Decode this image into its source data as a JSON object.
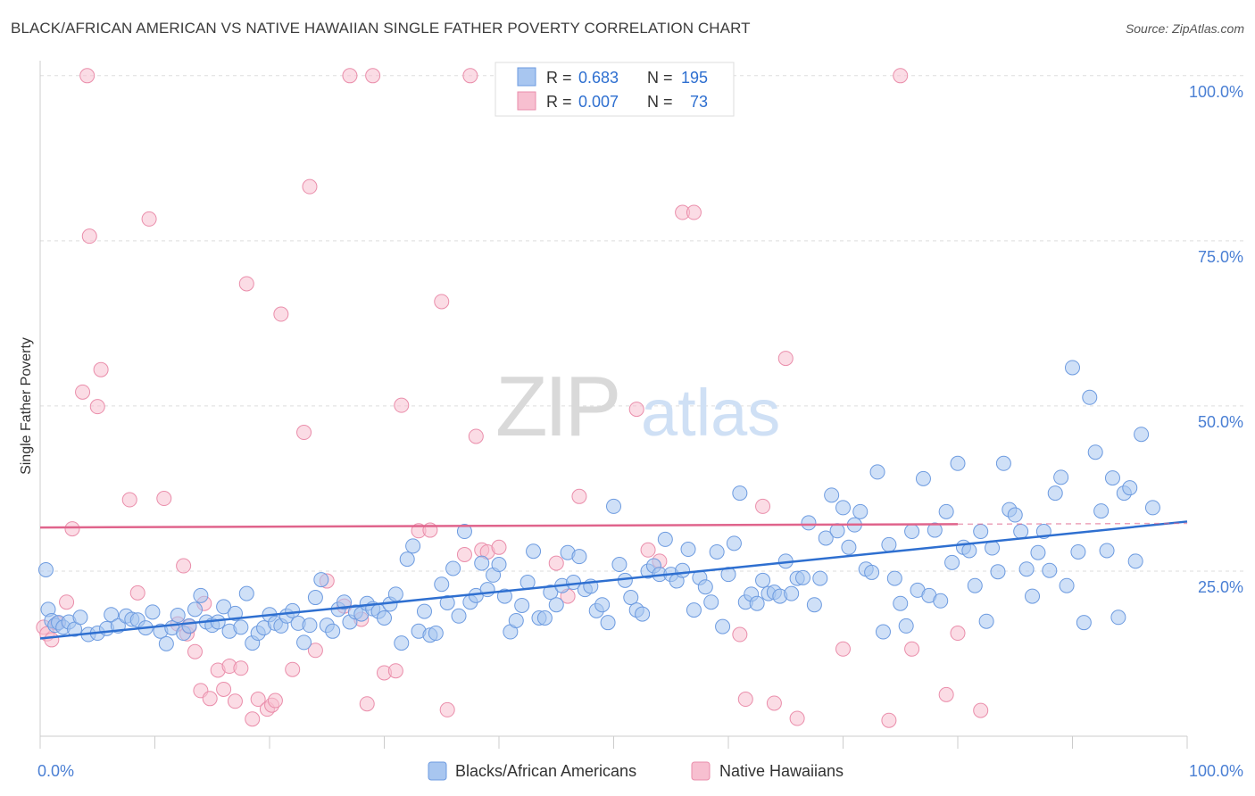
{
  "title": "BLACK/AFRICAN AMERICAN VS NATIVE HAWAIIAN SINGLE FATHER POVERTY CORRELATION CHART",
  "source": "Source: ZipAtlas.com",
  "watermark": {
    "zip": "ZIP",
    "atlas": "atlas"
  },
  "colors": {
    "blue_fill": "#a8c6f0",
    "blue_stroke": "#6d9be0",
    "blue_line": "#2e6fd0",
    "pink_fill": "#f7bfd0",
    "pink_stroke": "#ea8eab",
    "pink_line": "#e0648c",
    "axis_text": "#4a7fd4",
    "grid": "#dddddd"
  },
  "legend": {
    "rows": [
      {
        "r_label": "R =",
        "r_value": "0.683",
        "n_label": "N =",
        "n_value": "195"
      },
      {
        "r_label": "R =",
        "r_value": "0.007",
        "n_label": "N =",
        "n_value": "73"
      }
    ]
  },
  "chart_data": {
    "type": "scatter",
    "title": "BLACK/AFRICAN AMERICAN VS NATIVE HAWAIIAN SINGLE FATHER POVERTY CORRELATION CHART",
    "xlabel": "",
    "ylabel": "Single Father Poverty",
    "xlim": [
      0,
      100
    ],
    "ylim": [
      0,
      102
    ],
    "x_tick_labels": [
      "0.0%",
      "100.0%"
    ],
    "y_ticks": [
      25,
      50,
      75,
      100
    ],
    "y_tick_labels": [
      "25.0%",
      "50.0%",
      "75.0%",
      "100.0%"
    ],
    "grid": true,
    "legend_position": "bottom",
    "series": [
      {
        "name": "Blacks/African Americans",
        "trend": {
          "x": [
            0,
            100
          ],
          "y": [
            14.8,
            32.5
          ]
        },
        "points": [
          [
            0.5,
            25.2
          ],
          [
            0.7,
            19.2
          ],
          [
            1,
            17.5
          ],
          [
            1.3,
            16.8
          ],
          [
            1.6,
            17.2
          ],
          [
            2,
            16.5
          ],
          [
            2.5,
            17.3
          ],
          [
            3,
            16.2
          ],
          [
            3.5,
            18.0
          ],
          [
            4.2,
            15.4
          ],
          [
            5,
            15.6
          ],
          [
            5.8,
            16.3
          ],
          [
            6.2,
            18.4
          ],
          [
            6.8,
            16.7
          ],
          [
            7.5,
            18.2
          ],
          [
            8,
            17.7
          ],
          [
            8.5,
            17.6
          ],
          [
            9.2,
            16.4
          ],
          [
            9.8,
            18.8
          ],
          [
            10.5,
            15.9
          ],
          [
            11,
            14.0
          ],
          [
            11.5,
            16.4
          ],
          [
            12,
            18.3
          ],
          [
            12.5,
            15.6
          ],
          [
            13,
            16.7
          ],
          [
            13.5,
            19.2
          ],
          [
            14,
            21.3
          ],
          [
            14.5,
            17.3
          ],
          [
            15,
            16.8
          ],
          [
            15.5,
            17.3
          ],
          [
            16,
            19.6
          ],
          [
            16.5,
            15.9
          ],
          [
            17,
            18.6
          ],
          [
            17.5,
            16.5
          ],
          [
            18,
            21.6
          ],
          [
            18.5,
            14.1
          ],
          [
            19,
            15.6
          ],
          [
            19.5,
            16.4
          ],
          [
            20,
            18.4
          ],
          [
            20.5,
            17.1
          ],
          [
            21,
            16.7
          ],
          [
            21.5,
            18.2
          ],
          [
            22,
            19.0
          ],
          [
            22.5,
            17.1
          ],
          [
            23,
            14.2
          ],
          [
            23.5,
            16.8
          ],
          [
            24,
            21.0
          ],
          [
            24.5,
            23.7
          ],
          [
            25,
            16.8
          ],
          [
            25.5,
            15.9
          ],
          [
            26,
            19.2
          ],
          [
            26.5,
            20.3
          ],
          [
            27,
            17.3
          ],
          [
            27.5,
            18.8
          ],
          [
            28,
            18.5
          ],
          [
            28.5,
            20.1
          ],
          [
            29,
            19.3
          ],
          [
            29.5,
            18.9
          ],
          [
            30,
            17.9
          ],
          [
            30.5,
            20.0
          ],
          [
            31,
            21.5
          ],
          [
            31.5,
            14.1
          ],
          [
            32,
            26.8
          ],
          [
            32.5,
            28.8
          ],
          [
            33,
            15.9
          ],
          [
            33.5,
            18.9
          ],
          [
            34,
            15.3
          ],
          [
            34.5,
            15.6
          ],
          [
            35,
            23.0
          ],
          [
            35.5,
            20.2
          ],
          [
            36,
            25.4
          ],
          [
            36.5,
            18.2
          ],
          [
            37,
            31.0
          ],
          [
            37.5,
            20.3
          ],
          [
            38,
            21.3
          ],
          [
            38.5,
            26.2
          ],
          [
            39,
            22.2
          ],
          [
            39.5,
            24.4
          ],
          [
            40,
            26.0
          ],
          [
            40.5,
            21.2
          ],
          [
            41,
            15.8
          ],
          [
            41.5,
            17.5
          ],
          [
            42,
            19.8
          ],
          [
            42.5,
            23.3
          ],
          [
            43,
            28.0
          ],
          [
            43.5,
            17.9
          ],
          [
            44,
            17.9
          ],
          [
            44.5,
            21.8
          ],
          [
            45,
            19.9
          ],
          [
            45.5,
            22.8
          ],
          [
            46,
            27.8
          ],
          [
            46.5,
            23.3
          ],
          [
            47,
            27.2
          ],
          [
            47.5,
            22.2
          ],
          [
            48,
            22.7
          ],
          [
            48.5,
            19.0
          ],
          [
            49,
            19.9
          ],
          [
            49.5,
            17.2
          ],
          [
            50,
            34.8
          ],
          [
            50.5,
            26.0
          ],
          [
            51,
            23.6
          ],
          [
            51.5,
            21.0
          ],
          [
            52,
            19.1
          ],
          [
            52.5,
            18.5
          ],
          [
            53,
            25.0
          ],
          [
            53.5,
            25.8
          ],
          [
            54,
            24.5
          ],
          [
            54.5,
            29.8
          ],
          [
            55,
            24.5
          ],
          [
            55.5,
            23.5
          ],
          [
            56,
            25.1
          ],
          [
            56.5,
            28.3
          ],
          [
            57,
            19.1
          ],
          [
            57.5,
            24.0
          ],
          [
            58,
            22.6
          ],
          [
            58.5,
            20.3
          ],
          [
            59,
            27.9
          ],
          [
            59.5,
            16.6
          ],
          [
            60,
            24.5
          ],
          [
            60.5,
            29.2
          ],
          [
            61,
            36.8
          ],
          [
            61.5,
            20.3
          ],
          [
            62,
            21.5
          ],
          [
            62.5,
            20.1
          ],
          [
            63,
            23.6
          ],
          [
            63.5,
            21.6
          ],
          [
            64,
            21.8
          ],
          [
            64.5,
            21.2
          ],
          [
            65,
            26.5
          ],
          [
            65.5,
            21.6
          ],
          [
            66,
            23.9
          ],
          [
            66.5,
            24.0
          ],
          [
            67,
            32.3
          ],
          [
            67.5,
            19.9
          ],
          [
            68,
            23.9
          ],
          [
            68.5,
            30.0
          ],
          [
            69,
            36.5
          ],
          [
            69.5,
            31.1
          ],
          [
            70,
            34.6
          ],
          [
            70.5,
            28.6
          ],
          [
            71,
            32.0
          ],
          [
            71.5,
            34.0
          ],
          [
            72,
            25.3
          ],
          [
            72.5,
            24.8
          ],
          [
            73,
            40.0
          ],
          [
            73.5,
            15.8
          ],
          [
            74,
            29.0
          ],
          [
            74.5,
            23.9
          ],
          [
            75,
            20.1
          ],
          [
            75.5,
            16.7
          ],
          [
            76,
            31.0
          ],
          [
            76.5,
            22.1
          ],
          [
            77,
            39.0
          ],
          [
            77.5,
            21.3
          ],
          [
            78,
            31.2
          ],
          [
            78.5,
            20.5
          ],
          [
            79,
            34.0
          ],
          [
            79.5,
            26.3
          ],
          [
            80,
            41.3
          ],
          [
            80.5,
            28.6
          ],
          [
            81,
            28.1
          ],
          [
            81.5,
            22.8
          ],
          [
            82,
            31.0
          ],
          [
            82.5,
            17.4
          ],
          [
            83,
            28.5
          ],
          [
            83.5,
            24.9
          ],
          [
            84,
            41.3
          ],
          [
            84.5,
            34.3
          ],
          [
            85,
            33.5
          ],
          [
            85.5,
            31.0
          ],
          [
            86,
            25.3
          ],
          [
            86.5,
            21.2
          ],
          [
            87,
            27.8
          ],
          [
            87.5,
            31.0
          ],
          [
            88,
            25.1
          ],
          [
            88.5,
            36.8
          ],
          [
            89,
            39.2
          ],
          [
            89.5,
            22.8
          ],
          [
            90,
            55.8
          ],
          [
            90.5,
            27.9
          ],
          [
            91,
            17.2
          ],
          [
            91.5,
            51.3
          ],
          [
            92,
            43.0
          ],
          [
            92.5,
            34.1
          ],
          [
            93,
            28.1
          ],
          [
            93.5,
            39.1
          ],
          [
            94,
            18.0
          ],
          [
            94.5,
            36.8
          ],
          [
            95,
            37.6
          ],
          [
            95.5,
            26.5
          ],
          [
            96,
            45.7
          ],
          [
            97,
            34.6
          ]
        ]
      },
      {
        "name": "Native Hawaiians",
        "trend": {
          "x": [
            0,
            80
          ],
          "y": [
            31.6,
            32.1
          ]
        },
        "trend_dashed_to": 100,
        "points": [
          [
            0.3,
            16.5
          ],
          [
            0.6,
            15.5
          ],
          [
            1,
            14.6
          ],
          [
            1.5,
            17.1
          ],
          [
            2.3,
            20.3
          ],
          [
            2.8,
            31.4
          ],
          [
            3.7,
            52.1
          ],
          [
            4.1,
            100
          ],
          [
            4.3,
            75.7
          ],
          [
            5,
            49.9
          ],
          [
            5.3,
            55.5
          ],
          [
            7.8,
            35.8
          ],
          [
            8.5,
            21.7
          ],
          [
            9.5,
            78.3
          ],
          [
            10.8,
            36.0
          ],
          [
            12,
            17.0
          ],
          [
            12.5,
            25.8
          ],
          [
            12.8,
            15.5
          ],
          [
            13,
            16.6
          ],
          [
            13.5,
            12.8
          ],
          [
            14,
            6.9
          ],
          [
            14.3,
            20.1
          ],
          [
            14.8,
            5.7
          ],
          [
            15.5,
            10.0
          ],
          [
            16,
            7.1
          ],
          [
            16.5,
            10.6
          ],
          [
            17,
            5.3
          ],
          [
            17.5,
            10.3
          ],
          [
            18,
            68.5
          ],
          [
            18.5,
            2.6
          ],
          [
            19,
            5.6
          ],
          [
            19.8,
            4.1
          ],
          [
            20.2,
            4.7
          ],
          [
            20.5,
            5.4
          ],
          [
            21,
            63.9
          ],
          [
            22,
            10.1
          ],
          [
            23,
            46.0
          ],
          [
            23.5,
            83.2
          ],
          [
            24,
            13.0
          ],
          [
            25,
            23.5
          ],
          [
            26.5,
            19.7
          ],
          [
            27,
            100
          ],
          [
            28,
            17.7
          ],
          [
            28.5,
            4.9
          ],
          [
            29,
            100
          ],
          [
            30,
            9.6
          ],
          [
            31,
            9.9
          ],
          [
            31.5,
            50.1
          ],
          [
            33,
            31.1
          ],
          [
            34,
            31.2
          ],
          [
            35,
            65.8
          ],
          [
            35.5,
            4.0
          ],
          [
            37,
            27.5
          ],
          [
            37.5,
            100
          ],
          [
            38,
            45.4
          ],
          [
            38.5,
            28.2
          ],
          [
            39,
            27.9
          ],
          [
            40,
            28.6
          ],
          [
            45,
            26.2
          ],
          [
            46,
            21.2
          ],
          [
            47,
            36.3
          ],
          [
            52,
            49.5
          ],
          [
            53,
            28.2
          ],
          [
            54,
            26.5
          ],
          [
            56,
            79.3
          ],
          [
            57,
            79.3
          ],
          [
            61,
            15.4
          ],
          [
            61.5,
            5.6
          ],
          [
            63,
            34.8
          ],
          [
            64,
            5.0
          ],
          [
            65,
            57.2
          ],
          [
            66,
            2.7
          ],
          [
            70,
            13.2
          ],
          [
            74,
            2.4
          ],
          [
            75,
            100
          ],
          [
            76,
            13.2
          ],
          [
            79,
            6.3
          ],
          [
            80,
            15.6
          ],
          [
            82,
            3.9
          ]
        ]
      }
    ]
  },
  "bottom_legend": [
    {
      "label": "Blacks/African Americans"
    },
    {
      "label": "Native Hawaiians"
    }
  ]
}
